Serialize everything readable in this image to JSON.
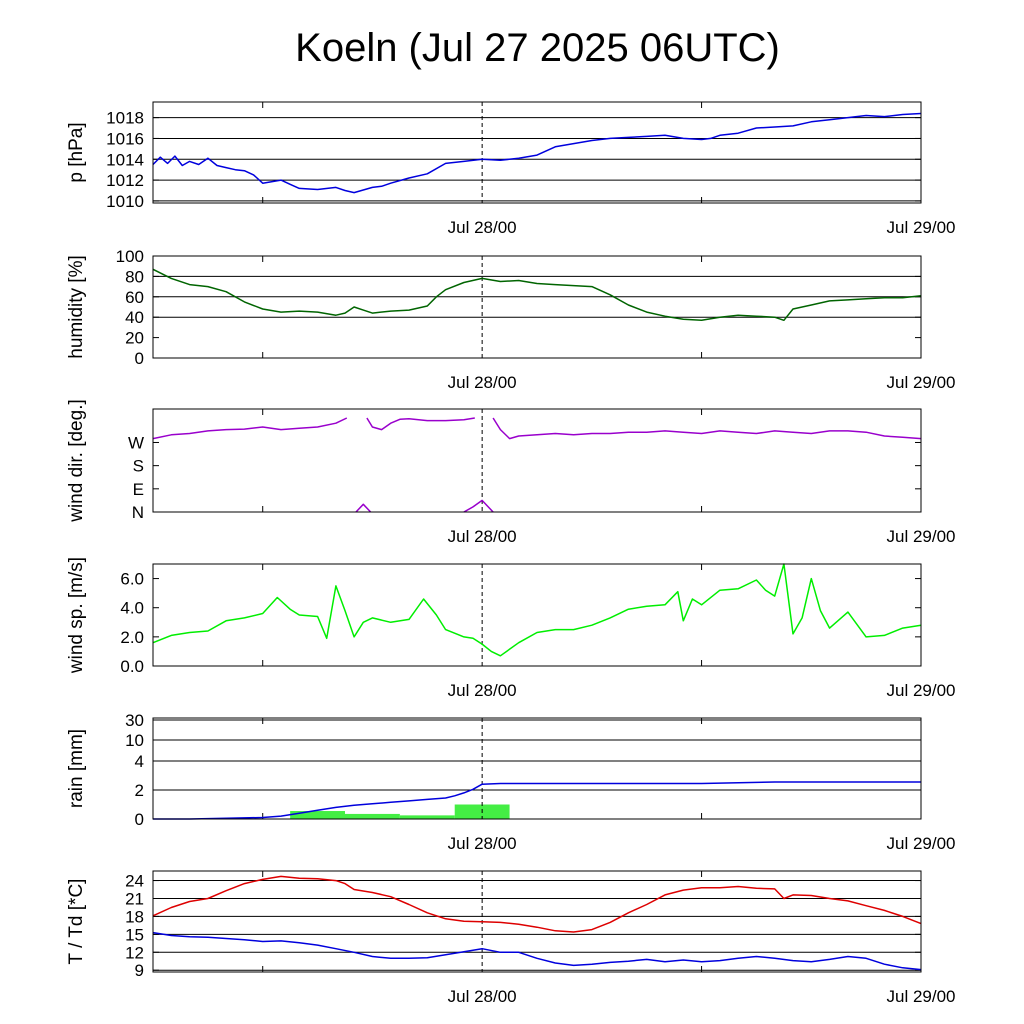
{
  "title": "Koeln (Jul 27 2025 06UTC)",
  "chart_data": [
    {
      "type": "line",
      "ylabel": "p [hPa]",
      "ylim": [
        1009.8,
        1019.5
      ],
      "yticks": [
        1010,
        1012,
        1014,
        1016,
        1018
      ],
      "ytick_labels": [
        "1010",
        "1012",
        "1014",
        "1016",
        "1018"
      ],
      "hgrid": [
        1010,
        1012,
        1014,
        1016,
        1018
      ],
      "x_range_hours": [
        0,
        42
      ],
      "xtick_labels": [
        {
          "hour": 18,
          "label": "Jul 28/00"
        },
        {
          "hour": 42,
          "label": "Jul 29/00"
        }
      ],
      "minor_ticks_hours": [
        6,
        30
      ],
      "series": [
        {
          "color": "#0000dd",
          "x": [
            0,
            0.4,
            0.8,
            1.2,
            1.6,
            2,
            2.5,
            3,
            3.5,
            4,
            4.5,
            5,
            5.5,
            6,
            7,
            7.5,
            8,
            9,
            10,
            10.5,
            11,
            12,
            12.5,
            13,
            14,
            15,
            16,
            17,
            18,
            19,
            20,
            21,
            22,
            23,
            24,
            25,
            26,
            27,
            28,
            29,
            30,
            30.5,
            31,
            32,
            33,
            34,
            35,
            36,
            37,
            38,
            39,
            40,
            41,
            42
          ],
          "y": [
            1013.5,
            1014.2,
            1013.6,
            1014.3,
            1013.4,
            1013.8,
            1013.5,
            1014.1,
            1013.4,
            1013.2,
            1013.0,
            1012.9,
            1012.5,
            1011.7,
            1012.0,
            1011.6,
            1011.2,
            1011.1,
            1011.3,
            1011.0,
            1010.8,
            1011.3,
            1011.4,
            1011.7,
            1012.2,
            1012.6,
            1013.6,
            1013.8,
            1014.0,
            1013.9,
            1014.1,
            1014.4,
            1015.2,
            1015.5,
            1015.8,
            1016.0,
            1016.1,
            1016.2,
            1016.3,
            1016.0,
            1015.9,
            1016.0,
            1016.3,
            1016.5,
            1017.0,
            1017.1,
            1017.2,
            1017.6,
            1017.8,
            1018.0,
            1018.2,
            1018.1,
            1018.3,
            1018.4
          ]
        }
      ]
    },
    {
      "type": "line",
      "ylabel": "humidity [%]",
      "ylim": [
        0,
        100
      ],
      "yticks": [
        0,
        20,
        40,
        60,
        80,
        100
      ],
      "ytick_labels": [
        "0",
        "20",
        "40",
        "60",
        "80",
        "100"
      ],
      "hgrid": [
        40,
        60,
        80
      ],
      "x_range_hours": [
        0,
        42
      ],
      "xtick_labels": [
        {
          "hour": 18,
          "label": "Jul 28/00"
        },
        {
          "hour": 42,
          "label": "Jul 29/00"
        }
      ],
      "minor_ticks_hours": [
        6,
        30
      ],
      "series": [
        {
          "color": "#006400",
          "x": [
            0,
            1,
            2,
            3,
            4,
            5,
            6,
            7,
            8,
            9,
            10,
            10.5,
            11,
            11.5,
            12,
            13,
            14,
            15,
            15.5,
            16,
            17,
            18,
            19,
            20,
            21,
            22,
            23,
            24,
            25,
            26,
            27,
            28,
            29,
            30,
            31,
            32,
            33,
            34,
            34.5,
            35,
            36,
            37,
            38,
            39,
            40,
            41,
            42
          ],
          "y": [
            87,
            78,
            72,
            70,
            65,
            55,
            48,
            45,
            46,
            45,
            42,
            44,
            50,
            47,
            44,
            46,
            47,
            51,
            60,
            67,
            74,
            78,
            75,
            76,
            73,
            72,
            71,
            70,
            62,
            52,
            45,
            41,
            38,
            37,
            40,
            42,
            41,
            40,
            37,
            48,
            52,
            56,
            57,
            58,
            59,
            59,
            61
          ]
        }
      ]
    },
    {
      "type": "line",
      "ylabel": "wind dir. [deg.]",
      "ylim": [
        0,
        400
      ],
      "yticks": [
        0,
        90,
        180,
        270
      ],
      "ytick_labels": [
        "N",
        "E",
        "S",
        "W"
      ],
      "hgrid": [],
      "x_range_hours": [
        0,
        42
      ],
      "xtick_labels": [
        {
          "hour": 18,
          "label": "Jul 28/00"
        },
        {
          "hour": 42,
          "label": "Jul 29/00"
        }
      ],
      "minor_ticks_hours": [
        6,
        30
      ],
      "series": [
        {
          "color": "#9900cc",
          "x": [
            0,
            1,
            2,
            3,
            4,
            5,
            6,
            7,
            8,
            9,
            10,
            10.6
          ],
          "y": [
            285,
            300,
            305,
            315,
            320,
            322,
            330,
            320,
            325,
            330,
            345,
            365
          ]
        },
        {
          "color": "#9900cc",
          "x": [
            11.7,
            12,
            12.5,
            13,
            13.5,
            14,
            15,
            16,
            17,
            17.6
          ],
          "y": [
            365,
            330,
            320,
            345,
            360,
            362,
            355,
            355,
            358,
            365
          ]
        },
        {
          "color": "#9900cc",
          "x": [
            18.6,
            19,
            19.5,
            20,
            21,
            22,
            23,
            24,
            25,
            26,
            27,
            28,
            29,
            30,
            31,
            32,
            33,
            34,
            35,
            36,
            37,
            38,
            39,
            40,
            41,
            42
          ],
          "y": [
            365,
            320,
            285,
            295,
            300,
            305,
            300,
            305,
            305,
            310,
            310,
            315,
            310,
            305,
            315,
            310,
            305,
            315,
            310,
            305,
            315,
            315,
            310,
            295,
            290,
            285
          ]
        },
        {
          "color": "#9900cc",
          "x": [
            11.1,
            11.5,
            11.9
          ],
          "y": [
            0,
            30,
            0
          ]
        },
        {
          "color": "#9900cc",
          "x": [
            17.0,
            17.5,
            18.0,
            18.6
          ],
          "y": [
            0,
            20,
            45,
            0
          ]
        }
      ]
    },
    {
      "type": "line",
      "ylabel": "wind sp. [m/s]",
      "ylim": [
        0,
        7
      ],
      "yticks": [
        0,
        2,
        4,
        6
      ],
      "ytick_labels": [
        "0.0",
        "2.0",
        "4.0",
        "6.0"
      ],
      "hgrid": [],
      "x_range_hours": [
        0,
        42
      ],
      "xtick_labels": [
        {
          "hour": 18,
          "label": "Jul 28/00"
        },
        {
          "hour": 42,
          "label": "Jul 29/00"
        }
      ],
      "minor_ticks_hours": [
        6,
        30
      ],
      "series": [
        {
          "color": "#00ee00",
          "x": [
            0,
            1,
            2,
            3,
            4,
            5,
            6,
            6.8,
            7.5,
            8,
            9,
            9.5,
            10,
            10.5,
            11,
            11.5,
            12,
            13,
            14,
            14.8,
            15.5,
            16,
            17,
            17.5,
            18,
            18.5,
            19,
            20,
            21,
            22,
            23,
            24,
            25,
            26,
            27,
            28,
            28.7,
            29,
            29.5,
            30,
            31,
            32,
            33,
            33.5,
            34,
            34.5,
            35,
            35.5,
            36,
            36.5,
            37,
            38,
            39,
            40,
            41,
            42
          ],
          "y": [
            1.6,
            2.1,
            2.3,
            2.4,
            3.1,
            3.3,
            3.6,
            4.7,
            3.9,
            3.5,
            3.4,
            1.9,
            5.5,
            3.8,
            2.0,
            3.0,
            3.3,
            3.0,
            3.2,
            4.6,
            3.5,
            2.5,
            2.0,
            1.9,
            1.5,
            1.0,
            0.7,
            1.6,
            2.3,
            2.5,
            2.5,
            2.8,
            3.3,
            3.9,
            4.1,
            4.2,
            5.1,
            3.1,
            4.6,
            4.2,
            5.2,
            5.3,
            5.9,
            5.2,
            4.8,
            7.0,
            2.2,
            3.3,
            6.0,
            3.8,
            2.6,
            3.7,
            2.0,
            2.1,
            2.6,
            2.8
          ]
        }
      ]
    },
    {
      "type": "bar+line",
      "ylabel": "rain [mm]",
      "y_scale": "nonlinear",
      "ylim": [
        0,
        30
      ],
      "yticks": [
        0,
        2,
        4,
        10,
        30
      ],
      "ytick_labels": [
        "0",
        "2",
        "4",
        "10",
        "30"
      ],
      "hgrid": [
        2,
        4,
        10,
        30
      ],
      "x_range_hours": [
        0,
        42
      ],
      "xtick_labels": [
        {
          "hour": 18,
          "label": "Jul 28/00"
        },
        {
          "hour": 42,
          "label": "Jul 29/00"
        }
      ],
      "minor_ticks_hours": [
        6,
        30
      ],
      "bars": {
        "color": "#44ee44",
        "x_start": [
          7.5,
          10.5,
          13.5,
          16.5
        ],
        "x_end": [
          10.5,
          13.5,
          16.5,
          19.5
        ],
        "values": [
          0.55,
          0.35,
          0.25,
          1.0
        ]
      },
      "series": [
        {
          "color": "#0000dd",
          "x": [
            0,
            2,
            4,
            6,
            7,
            8,
            9,
            10,
            11,
            12,
            13,
            14,
            15,
            16,
            16.5,
            17,
            17.5,
            18,
            19,
            22,
            26,
            30,
            34,
            38,
            42
          ],
          "y": [
            0,
            0,
            0.05,
            0.1,
            0.2,
            0.4,
            0.6,
            0.8,
            0.95,
            1.05,
            1.15,
            1.25,
            1.35,
            1.45,
            1.6,
            1.8,
            2.05,
            2.4,
            2.45,
            2.45,
            2.45,
            2.45,
            2.55,
            2.55,
            2.55
          ]
        }
      ]
    },
    {
      "type": "line",
      "ylabel": "T / Td [*C]",
      "ylim": [
        8.7,
        25.6
      ],
      "yticks": [
        9,
        12,
        15,
        18,
        21,
        24
      ],
      "ytick_labels": [
        "9",
        "12",
        "15",
        "18",
        "21",
        "24"
      ],
      "hgrid": [
        9,
        12,
        15,
        18,
        21,
        24
      ],
      "x_range_hours": [
        0,
        42
      ],
      "xtick_labels": [
        {
          "hour": 18,
          "label": "Jul 28/00"
        },
        {
          "hour": 42,
          "label": "Jul 29/00"
        }
      ],
      "minor_ticks_hours": [
        6,
        30
      ],
      "series": [
        {
          "color": "#dd0000",
          "x": [
            0,
            1,
            2,
            3,
            4,
            5,
            6,
            7,
            8,
            9,
            10,
            10.5,
            11,
            12,
            13,
            14,
            15,
            16,
            17,
            18,
            19,
            20,
            21,
            22,
            23,
            24,
            25,
            26,
            27,
            28,
            29,
            30,
            31,
            32,
            33,
            34,
            34.5,
            35,
            36,
            37,
            38,
            39,
            40,
            41,
            42
          ],
          "y": [
            18.1,
            19.5,
            20.5,
            21.0,
            22.3,
            23.5,
            24.2,
            24.7,
            24.4,
            24.3,
            24.0,
            23.5,
            22.5,
            22.0,
            21.3,
            20.0,
            18.6,
            17.6,
            17.2,
            17.1,
            17.0,
            16.7,
            16.2,
            15.6,
            15.4,
            15.8,
            17.0,
            18.6,
            20.0,
            21.6,
            22.4,
            22.8,
            22.8,
            23.0,
            22.7,
            22.6,
            21.0,
            21.6,
            21.5,
            21.0,
            20.6,
            19.8,
            19.0,
            18.0,
            16.8
          ]
        },
        {
          "color": "#0000dd",
          "x": [
            0,
            1,
            2,
            3,
            4,
            5,
            6,
            7,
            8,
            9,
            10,
            11,
            12,
            13,
            14,
            15,
            16,
            17,
            18,
            19,
            20,
            21,
            22,
            23,
            24,
            25,
            26,
            27,
            28,
            29,
            30,
            31,
            32,
            33,
            34,
            35,
            36,
            37,
            38,
            39,
            40,
            41,
            42
          ],
          "y": [
            15.3,
            14.8,
            14.6,
            14.5,
            14.3,
            14.1,
            13.8,
            13.9,
            13.6,
            13.2,
            12.6,
            12.0,
            11.3,
            11.0,
            11.0,
            11.1,
            11.6,
            12.1,
            12.6,
            12.0,
            12.0,
            11.0,
            10.2,
            9.8,
            10.0,
            10.3,
            10.5,
            10.8,
            10.4,
            10.7,
            10.4,
            10.6,
            11.0,
            11.3,
            11.0,
            10.6,
            10.4,
            10.8,
            11.3,
            11.0,
            10.0,
            9.4,
            9.1
          ]
        }
      ]
    }
  ]
}
